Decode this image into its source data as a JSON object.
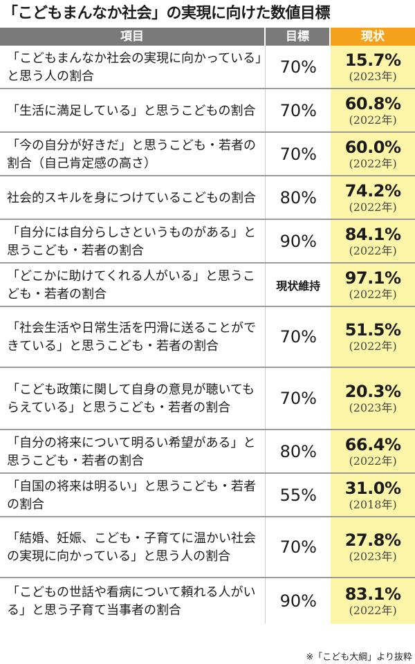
{
  "title": "「こどもまんなか社会」の実現に向けた数値目標",
  "header": {
    "item": "項目",
    "goal": "目標",
    "current": "現状"
  },
  "rows": [
    {
      "item": "「こどもまんなか社会の実現に向かっている」と思う人の割合",
      "goal": "70%",
      "pct": "15.7%",
      "year": "(2023年)"
    },
    {
      "item": "「生活に満足している」と思うこどもの割合",
      "goal": "70%",
      "pct": "60.8%",
      "year": "(2022年)"
    },
    {
      "item": "「今の自分が好きだ」と思うこども・若者の割合（自己肯定感の高さ）",
      "goal": "70%",
      "pct": "60.0%",
      "year": "(2022年)"
    },
    {
      "item": "社会的スキルを身につけているこどもの割合",
      "goal": "80%",
      "pct": "74.2%",
      "year": "(2022年)"
    },
    {
      "item": "「自分には自分らしさというものがある」と思うこども・若者の割合",
      "goal": "90%",
      "pct": "84.1%",
      "year": "(2022年)"
    },
    {
      "item": "「どこかに助けてくれる人がいる」と思うこども・若者の割合",
      "goal": "現状維持",
      "pct": "97.1%",
      "year": "(2022年)"
    },
    {
      "item": "「社会生活や日常生活を円滑に送ることができている」と思うこども・若者の割合",
      "goal": "70%",
      "pct": "51.5%",
      "year": "(2022年)"
    },
    {
      "item": "「こども政策に関して自身の意見が聴いてもらえている」と思うこども・若者の割合",
      "goal": "70%",
      "pct": "20.3%",
      "year": "(2023年)"
    },
    {
      "item": "「自分の将来について明るい希望がある」と思うこども・若者の割合",
      "goal": "80%",
      "pct": "66.4%",
      "year": "(2022年)"
    },
    {
      "item": "「自国の将来は明るい」と思うこども・若者の割合",
      "goal": "55%",
      "pct": "31.0%",
      "year": "(2018年)"
    },
    {
      "item": "「結婚、妊娠、こども・子育てに温かい社会の実現に向かっている」と思う人の割合",
      "goal": "70%",
      "pct": "27.8%",
      "year": "(2023年)"
    },
    {
      "item": "「こどもの世話や看病について頼れる人がいる」と思う子育て当事者の割合",
      "goal": "90%",
      "pct": "83.1%",
      "year": "(2022年)"
    }
  ],
  "footer": "※「こども大綱」より抜粋"
}
